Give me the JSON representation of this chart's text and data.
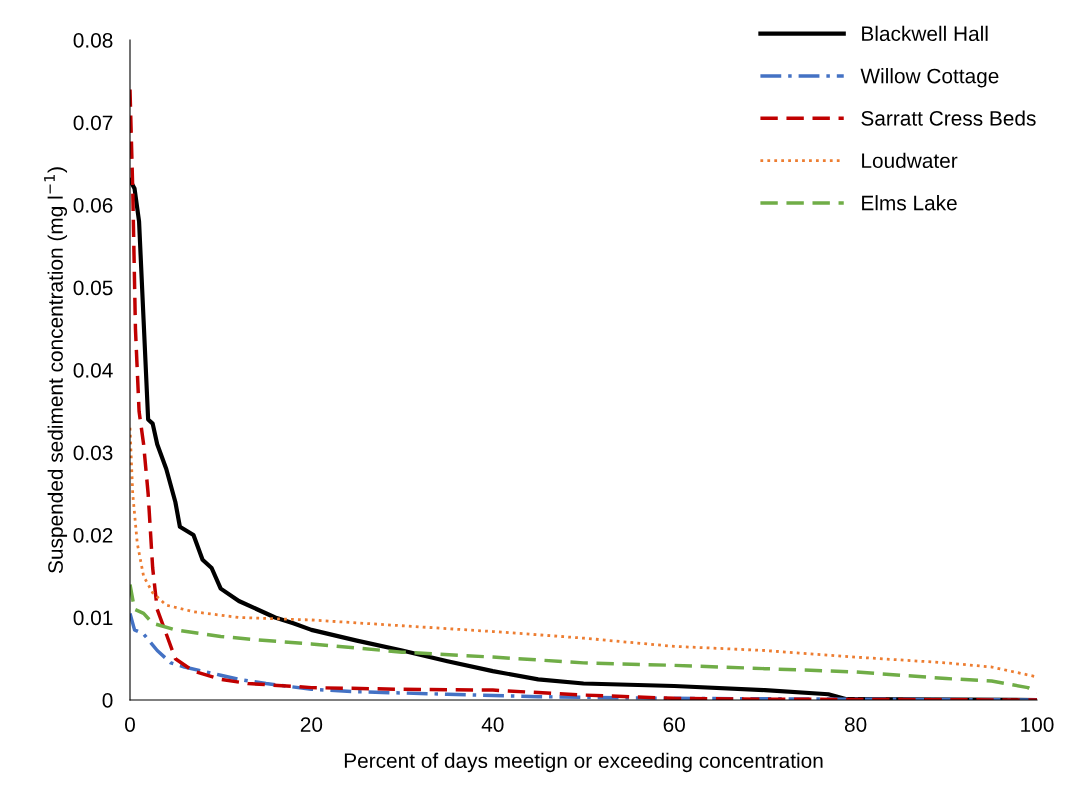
{
  "chart_data": {
    "type": "line",
    "xlabel": "Percent of days meetign or exceeding concentration",
    "ylabel": "Suspended sediment concentration (mg l$^{−1}$)",
    "xlim": [
      0,
      100
    ],
    "ylim": [
      0,
      0.08
    ],
    "xticks": [
      0,
      20,
      40,
      60,
      80,
      100
    ],
    "yticks": [
      0,
      0.01,
      0.02,
      0.03,
      0.04,
      0.05,
      0.06,
      0.07,
      0.08
    ],
    "legend": "top right",
    "grid": false,
    "marker": "none",
    "series": [
      {
        "name": "Blackwell Hall",
        "color": "#000000",
        "line_style": "solid",
        "x": [
          0,
          0.5,
          1,
          1.5,
          2,
          2.5,
          3,
          4,
          5,
          5.5,
          7,
          8,
          9,
          10,
          12,
          14,
          16,
          18,
          20,
          25,
          30,
          35,
          40,
          45,
          50,
          60,
          70,
          77,
          79,
          100
        ],
        "values": [
          0.063,
          0.062,
          0.058,
          0.046,
          0.034,
          0.0335,
          0.031,
          0.028,
          0.024,
          0.021,
          0.02,
          0.017,
          0.016,
          0.0135,
          0.012,
          0.011,
          0.01,
          0.0093,
          0.0085,
          0.0072,
          0.006,
          0.0047,
          0.0035,
          0.0025,
          0.002,
          0.0017,
          0.0012,
          0.0007,
          0.0001,
          0
        ]
      },
      {
        "name": "Willow Cottage",
        "color": "#4472c4",
        "line_style": "dashdot",
        "x": [
          0,
          0.5,
          1.5,
          3,
          4.5,
          6,
          8,
          10,
          12,
          15,
          20,
          25,
          35,
          45,
          60,
          80,
          100
        ],
        "values": [
          0.0105,
          0.0085,
          0.008,
          0.006,
          0.0045,
          0.004,
          0.0035,
          0.003,
          0.0025,
          0.002,
          0.0013,
          0.001,
          0.0007,
          0.0004,
          0.0002,
          0.0001,
          0
        ]
      },
      {
        "name": "Sarratt Cress Beds",
        "color": "#c00000",
        "line_style": "dashed",
        "x": [
          0,
          0.3,
          0.6,
          1,
          1.5,
          2,
          2.5,
          3,
          4,
          5,
          7,
          10,
          13,
          20,
          30,
          40,
          50,
          60,
          70,
          100
        ],
        "values": [
          0.074,
          0.062,
          0.045,
          0.035,
          0.031,
          0.025,
          0.016,
          0.011,
          0.008,
          0.005,
          0.0035,
          0.0025,
          0.002,
          0.0015,
          0.0013,
          0.0012,
          0.0006,
          0.0002,
          0.0001,
          0
        ]
      },
      {
        "name": "Loudwater",
        "color": "#ed7d31",
        "line_style": "dotted",
        "x": [
          0,
          0.3,
          0.8,
          1.5,
          2.5,
          4,
          7,
          12,
          20,
          30,
          40,
          50,
          60,
          70,
          80,
          90,
          95,
          100
        ],
        "values": [
          0.033,
          0.025,
          0.019,
          0.015,
          0.013,
          0.0115,
          0.0107,
          0.01,
          0.0097,
          0.009,
          0.0083,
          0.0075,
          0.0065,
          0.006,
          0.0052,
          0.0045,
          0.004,
          0.0028
        ]
      },
      {
        "name": "Elms Lake",
        "color": "#70ad47",
        "line_style": "dashed",
        "x": [
          0,
          0.5,
          1.5,
          2.5,
          5,
          10,
          15,
          20,
          30,
          40,
          50,
          60,
          70,
          80,
          90,
          95,
          99,
          100
        ],
        "values": [
          0.014,
          0.011,
          0.0105,
          0.0093,
          0.0085,
          0.0077,
          0.0072,
          0.0068,
          0.0058,
          0.0052,
          0.0045,
          0.0042,
          0.0038,
          0.0034,
          0.0026,
          0.0023,
          0.0015,
          0.0009
        ]
      }
    ]
  }
}
